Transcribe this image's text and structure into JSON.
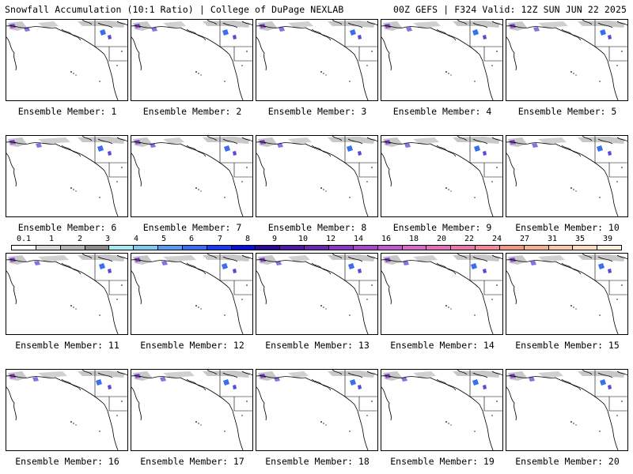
{
  "header": {
    "title_left": "Snowfall Accumulation (10:1 Ratio) | College of DuPage NEXLAB",
    "title_right": "00Z GEFS | F324 Valid: 12Z SUN JUN 22 2025"
  },
  "members": [
    "Ensemble Member: 1",
    "Ensemble Member: 2",
    "Ensemble Member: 3",
    "Ensemble Member: 4",
    "Ensemble Member: 5",
    "Ensemble Member: 6",
    "Ensemble Member: 7",
    "Ensemble Member: 8",
    "Ensemble Member: 9",
    "Ensemble Member: 10",
    "Ensemble Member: 11",
    "Ensemble Member: 12",
    "Ensemble Member: 13",
    "Ensemble Member: 14",
    "Ensemble Member: 15",
    "Ensemble Member: 16",
    "Ensemble Member: 17",
    "Ensemble Member: 18",
    "Ensemble Member: 19",
    "Ensemble Member: 20"
  ],
  "colorbar": {
    "ticks": [
      "0.1",
      "1",
      "2",
      "3",
      "4",
      "5",
      "6",
      "7",
      "8",
      "9",
      "10",
      "12",
      "14",
      "16",
      "18",
      "20",
      "22",
      "24",
      "27",
      "31",
      "35",
      "39"
    ],
    "colors": [
      "#ffffff",
      "#d8d8d8",
      "#b4b4b4",
      "#8c8c8c",
      "#a8e8f0",
      "#7fc8f0",
      "#5a9cf0",
      "#3a6ef0",
      "#1a3cf0",
      "#0a10d0",
      "#2a0a90",
      "#4a1aa0",
      "#6a28b0",
      "#8a38c0",
      "#a848c8",
      "#c058d0",
      "#d868c8",
      "#e070b8",
      "#e878a8",
      "#f08898",
      "#f09880",
      "#f4b090",
      "#f8c8a8",
      "#fcdcc0",
      "#fff0e0"
    ]
  }
}
